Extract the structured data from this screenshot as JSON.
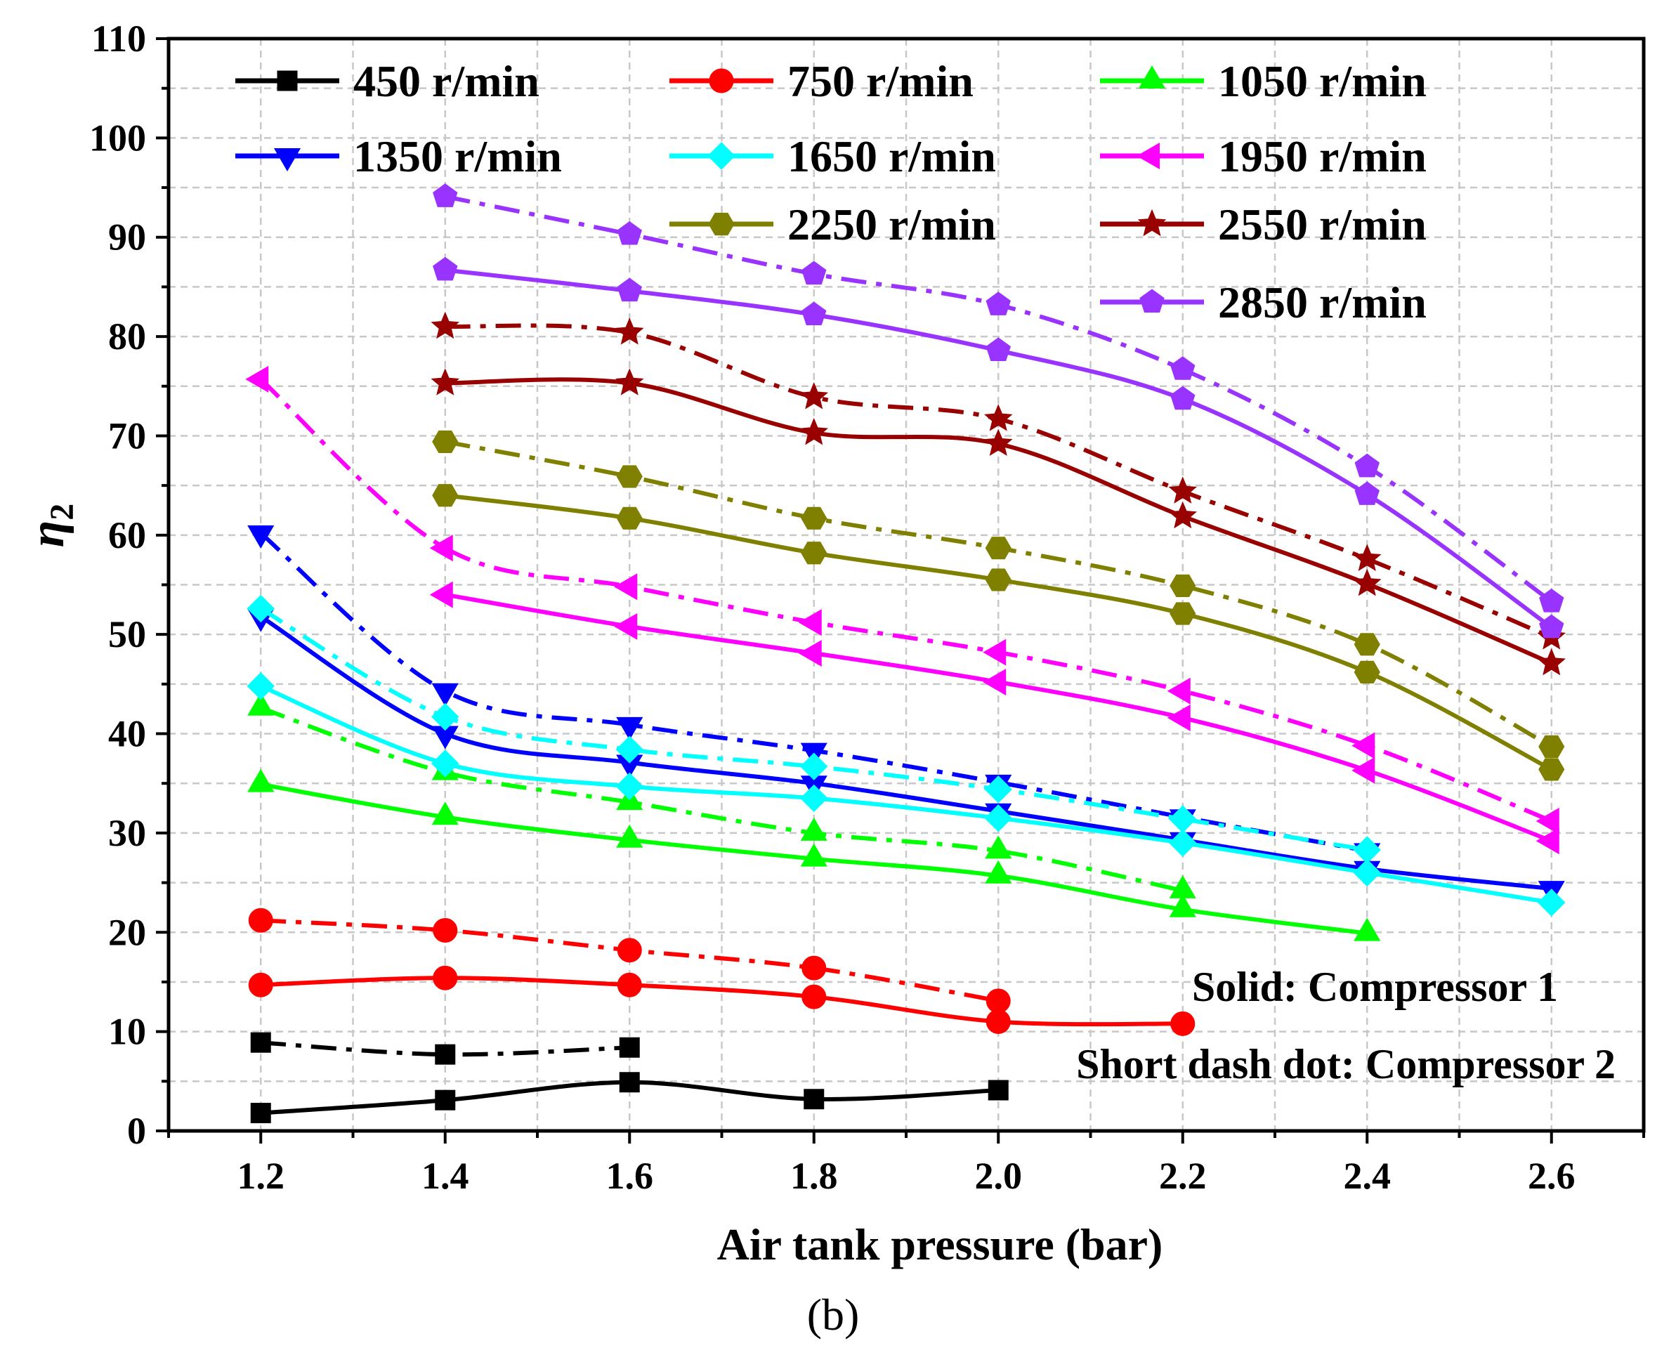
{
  "chart_data": {
    "type": "line",
    "caption": "(b)",
    "ylabel": "η",
    "ylabel_subscript": "2",
    "xlabel": "Air tank pressure (bar)",
    "xlim": [
      1.1,
      2.7
    ],
    "ylim": [
      0,
      110
    ],
    "x_ticks": [
      "1.2",
      "1.4",
      "1.6",
      "1.8",
      "2.0",
      "2.2",
      "2.4",
      "2.6"
    ],
    "y_ticks": [
      "0",
      "10",
      "20",
      "30",
      "40",
      "50",
      "60",
      "70",
      "80",
      "90",
      "100",
      "110"
    ],
    "grid": true,
    "legend_position": "top-right",
    "annotations": [
      "Solid: Compressor 1",
      "Short dash dot: Compressor 2"
    ],
    "series": [
      {
        "name": "450 r/min",
        "color": "#000000",
        "marker": "square",
        "solid": [
          [
            1.2,
            1.8
          ],
          [
            1.4,
            3.1
          ],
          [
            1.6,
            4.9
          ],
          [
            1.8,
            3.2
          ],
          [
            2.0,
            4.1
          ]
        ],
        "dashdot": [
          [
            1.2,
            8.9
          ],
          [
            1.4,
            7.7
          ],
          [
            1.6,
            8.4
          ]
        ]
      },
      {
        "name": "750 r/min",
        "color": "#ff0000",
        "marker": "circle",
        "solid": [
          [
            1.2,
            14.7
          ],
          [
            1.4,
            15.4
          ],
          [
            1.6,
            14.7
          ],
          [
            1.8,
            13.5
          ],
          [
            2.0,
            11.0
          ],
          [
            2.2,
            10.8
          ]
        ],
        "dashdot": [
          [
            1.2,
            21.2
          ],
          [
            1.4,
            20.2
          ],
          [
            1.6,
            18.2
          ],
          [
            1.8,
            16.4
          ],
          [
            2.0,
            13.1
          ]
        ]
      },
      {
        "name": "1050 r/min",
        "color": "#00ff00",
        "marker": "triangle-up",
        "solid": [
          [
            1.2,
            34.9
          ],
          [
            1.4,
            31.6
          ],
          [
            1.6,
            29.3
          ],
          [
            1.8,
            27.4
          ],
          [
            2.0,
            25.7
          ],
          [
            2.2,
            22.3
          ],
          [
            2.4,
            19.9
          ]
        ],
        "dashdot": [
          [
            1.2,
            42.6
          ],
          [
            1.4,
            36.1
          ],
          [
            1.6,
            33.1
          ],
          [
            1.8,
            30.0
          ],
          [
            2.0,
            28.2
          ],
          [
            2.2,
            24.2
          ]
        ]
      },
      {
        "name": "1350 r/min",
        "color": "#0000ff",
        "marker": "triangle-down",
        "solid": [
          [
            1.2,
            51.8
          ],
          [
            1.4,
            40.0
          ],
          [
            1.6,
            37.1
          ],
          [
            1.8,
            35.0
          ],
          [
            2.0,
            32.2
          ],
          [
            2.2,
            29.3
          ],
          [
            2.4,
            26.4
          ],
          [
            2.6,
            24.4
          ]
        ],
        "dashdot": [
          [
            1.2,
            60.2
          ],
          [
            1.4,
            44.3
          ],
          [
            1.6,
            40.9
          ],
          [
            1.8,
            38.3
          ],
          [
            2.0,
            35.1
          ],
          [
            2.2,
            31.6
          ],
          [
            2.4,
            28.2
          ]
        ]
      },
      {
        "name": "1650 r/min",
        "color": "#00ffff",
        "marker": "diamond",
        "solid": [
          [
            1.2,
            44.8
          ],
          [
            1.4,
            37.0
          ],
          [
            1.6,
            34.7
          ],
          [
            1.8,
            33.5
          ],
          [
            2.0,
            31.5
          ],
          [
            2.2,
            29.0
          ],
          [
            2.4,
            26.0
          ],
          [
            2.6,
            23.0
          ]
        ],
        "dashdot": [
          [
            1.2,
            52.6
          ],
          [
            1.4,
            41.7
          ],
          [
            1.6,
            38.4
          ],
          [
            1.8,
            36.7
          ],
          [
            2.0,
            34.4
          ],
          [
            2.2,
            31.4
          ],
          [
            2.4,
            28.3
          ]
        ]
      },
      {
        "name": "1950 r/min",
        "color": "#ff00ff",
        "marker": "triangle-left",
        "solid": [
          [
            1.4,
            54.0
          ],
          [
            1.6,
            50.8
          ],
          [
            1.8,
            48.1
          ],
          [
            2.0,
            45.2
          ],
          [
            2.2,
            41.6
          ],
          [
            2.4,
            36.3
          ],
          [
            2.6,
            29.2
          ]
        ],
        "dashdot": [
          [
            1.2,
            75.7
          ],
          [
            1.4,
            58.7
          ],
          [
            1.6,
            54.8
          ],
          [
            1.8,
            51.2
          ],
          [
            2.0,
            48.2
          ],
          [
            2.2,
            44.3
          ],
          [
            2.4,
            38.8
          ],
          [
            2.6,
            31.2
          ]
        ]
      },
      {
        "name": "2250 r/min",
        "color": "#808000",
        "marker": "hexagon",
        "solid": [
          [
            1.4,
            64.0
          ],
          [
            1.6,
            61.7
          ],
          [
            1.8,
            58.2
          ],
          [
            2.0,
            55.5
          ],
          [
            2.2,
            52.1
          ],
          [
            2.4,
            46.2
          ],
          [
            2.6,
            36.4
          ]
        ],
        "dashdot": [
          [
            1.4,
            69.4
          ],
          [
            1.6,
            65.9
          ],
          [
            1.8,
            61.7
          ],
          [
            2.0,
            58.7
          ],
          [
            2.2,
            54.9
          ],
          [
            2.4,
            49.0
          ],
          [
            2.6,
            38.7
          ]
        ]
      },
      {
        "name": "2550 r/min",
        "color": "#990000",
        "marker": "star",
        "solid": [
          [
            1.4,
            75.3
          ],
          [
            1.6,
            75.3
          ],
          [
            1.8,
            70.3
          ],
          [
            2.0,
            69.2
          ],
          [
            2.2,
            61.9
          ],
          [
            2.4,
            55.1
          ],
          [
            2.6,
            47.1
          ]
        ],
        "dashdot": [
          [
            1.4,
            81.0
          ],
          [
            1.6,
            80.4
          ],
          [
            1.8,
            73.9
          ],
          [
            2.0,
            71.7
          ],
          [
            2.2,
            64.4
          ],
          [
            2.4,
            57.6
          ],
          [
            2.6,
            49.7
          ]
        ]
      },
      {
        "name": "2850 r/min",
        "color": "#9933ff",
        "marker": "pentagon",
        "solid": [
          [
            1.4,
            86.7
          ],
          [
            1.6,
            84.6
          ],
          [
            1.8,
            82.2
          ],
          [
            2.0,
            78.6
          ],
          [
            2.2,
            73.7
          ],
          [
            2.4,
            64.1
          ],
          [
            2.6,
            50.7
          ]
        ],
        "dashdot": [
          [
            1.4,
            94.1
          ],
          [
            1.6,
            90.3
          ],
          [
            1.8,
            86.3
          ],
          [
            2.0,
            83.2
          ],
          [
            2.2,
            76.7
          ],
          [
            2.4,
            66.9
          ],
          [
            2.6,
            53.3
          ]
        ]
      }
    ]
  }
}
